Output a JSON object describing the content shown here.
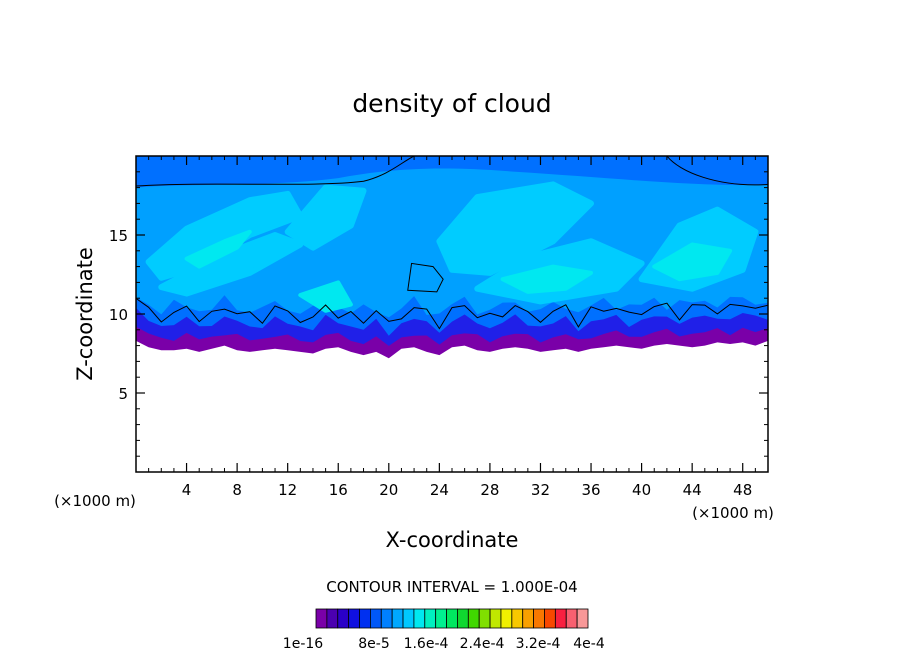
{
  "chart_data": {
    "type": "heatmap",
    "title": "density of cloud",
    "xlabel": "X-coordinate",
    "ylabel": "Z-coordinate",
    "x_unit": "(×1000 m)",
    "z_unit": "(×1000 m)",
    "xlim": [
      0,
      50
    ],
    "ylim": [
      0,
      20
    ],
    "x_ticks": [
      4,
      8,
      12,
      16,
      20,
      24,
      28,
      32,
      36,
      40,
      44,
      48
    ],
    "y_ticks": [
      5,
      10,
      15
    ],
    "contour_interval_text": "CONTOUR INTERVAL = 1.000E-04",
    "colorbar": {
      "tick_labels": [
        "1e-16",
        "8e-5",
        "1.6e-4",
        "2.4e-4",
        "3.2e-4",
        "4e-4"
      ],
      "colors": [
        "#7a00a8",
        "#4b00b0",
        "#2a00c8",
        "#1010e0",
        "#0030f0",
        "#0058f8",
        "#0080ff",
        "#00a8ff",
        "#00c8ff",
        "#00e8f0",
        "#00f0c0",
        "#00f090",
        "#00e860",
        "#10d830",
        "#40d800",
        "#80e000",
        "#c0e800",
        "#f0f000",
        "#f8c800",
        "#f8a000",
        "#f87800",
        "#f84800",
        "#f82040",
        "#f86070",
        "#f89898"
      ]
    },
    "layers": [
      {
        "name": "base_purple",
        "color": "#7a00a8"
      },
      {
        "name": "dark_blue",
        "color": "#2020e8"
      },
      {
        "name": "mid_blue",
        "color": "#0070ff"
      },
      {
        "name": "top_blue",
        "color": "#00a0ff"
      },
      {
        "name": "cyan",
        "color": "#00ccff"
      },
      {
        "name": "aqua",
        "color": "#00e8f0"
      }
    ],
    "cloud_base_km": [
      8.3,
      7.9,
      7.7,
      7.7,
      7.8,
      7.6,
      7.8,
      8.0,
      7.7,
      7.6,
      7.7,
      7.8,
      7.7,
      7.6,
      7.5,
      7.8,
      7.9,
      7.6,
      7.4,
      7.6,
      7.2,
      7.8,
      7.9,
      7.6,
      7.4,
      7.9,
      8.0,
      7.7,
      7.6,
      7.8,
      7.9,
      7.8,
      7.6,
      7.7,
      7.8,
      7.6,
      7.8,
      7.9,
      8.0,
      7.9,
      7.8,
      8.0,
      8.1,
      8.0,
      7.9,
      8.0,
      8.2,
      8.1,
      8.2,
      8.0,
      8.3
    ],
    "cloud_top_km": 19.8
  }
}
